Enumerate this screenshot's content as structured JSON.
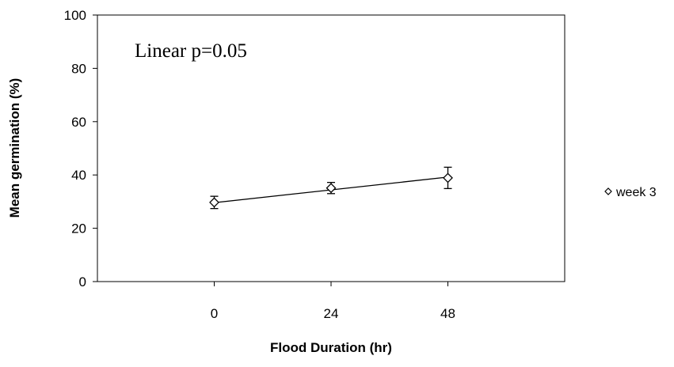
{
  "chart_data": {
    "type": "scatter",
    "title": "",
    "xlabel": "Flood Duration (hr)",
    "ylabel": "Mean germination (%)",
    "x_categories": [
      "0",
      "24",
      "48"
    ],
    "xlim": [
      -24,
      72
    ],
    "ylim": [
      0,
      100
    ],
    "yticks": [
      0,
      20,
      40,
      60,
      80,
      100
    ],
    "grid": false,
    "legend_position": "right",
    "annotation": "Linear p=0.05",
    "series": [
      {
        "name": "week 3",
        "marker": "diamond-open",
        "color": "#000000",
        "x": [
          0,
          24,
          48
        ],
        "y": [
          29.7,
          35.1,
          38.9
        ],
        "error": [
          2.3,
          2.1,
          4.0
        ]
      }
    ],
    "trendline": {
      "type": "linear",
      "x": [
        0,
        48
      ],
      "y": [
        29.6,
        39.2
      ]
    }
  }
}
